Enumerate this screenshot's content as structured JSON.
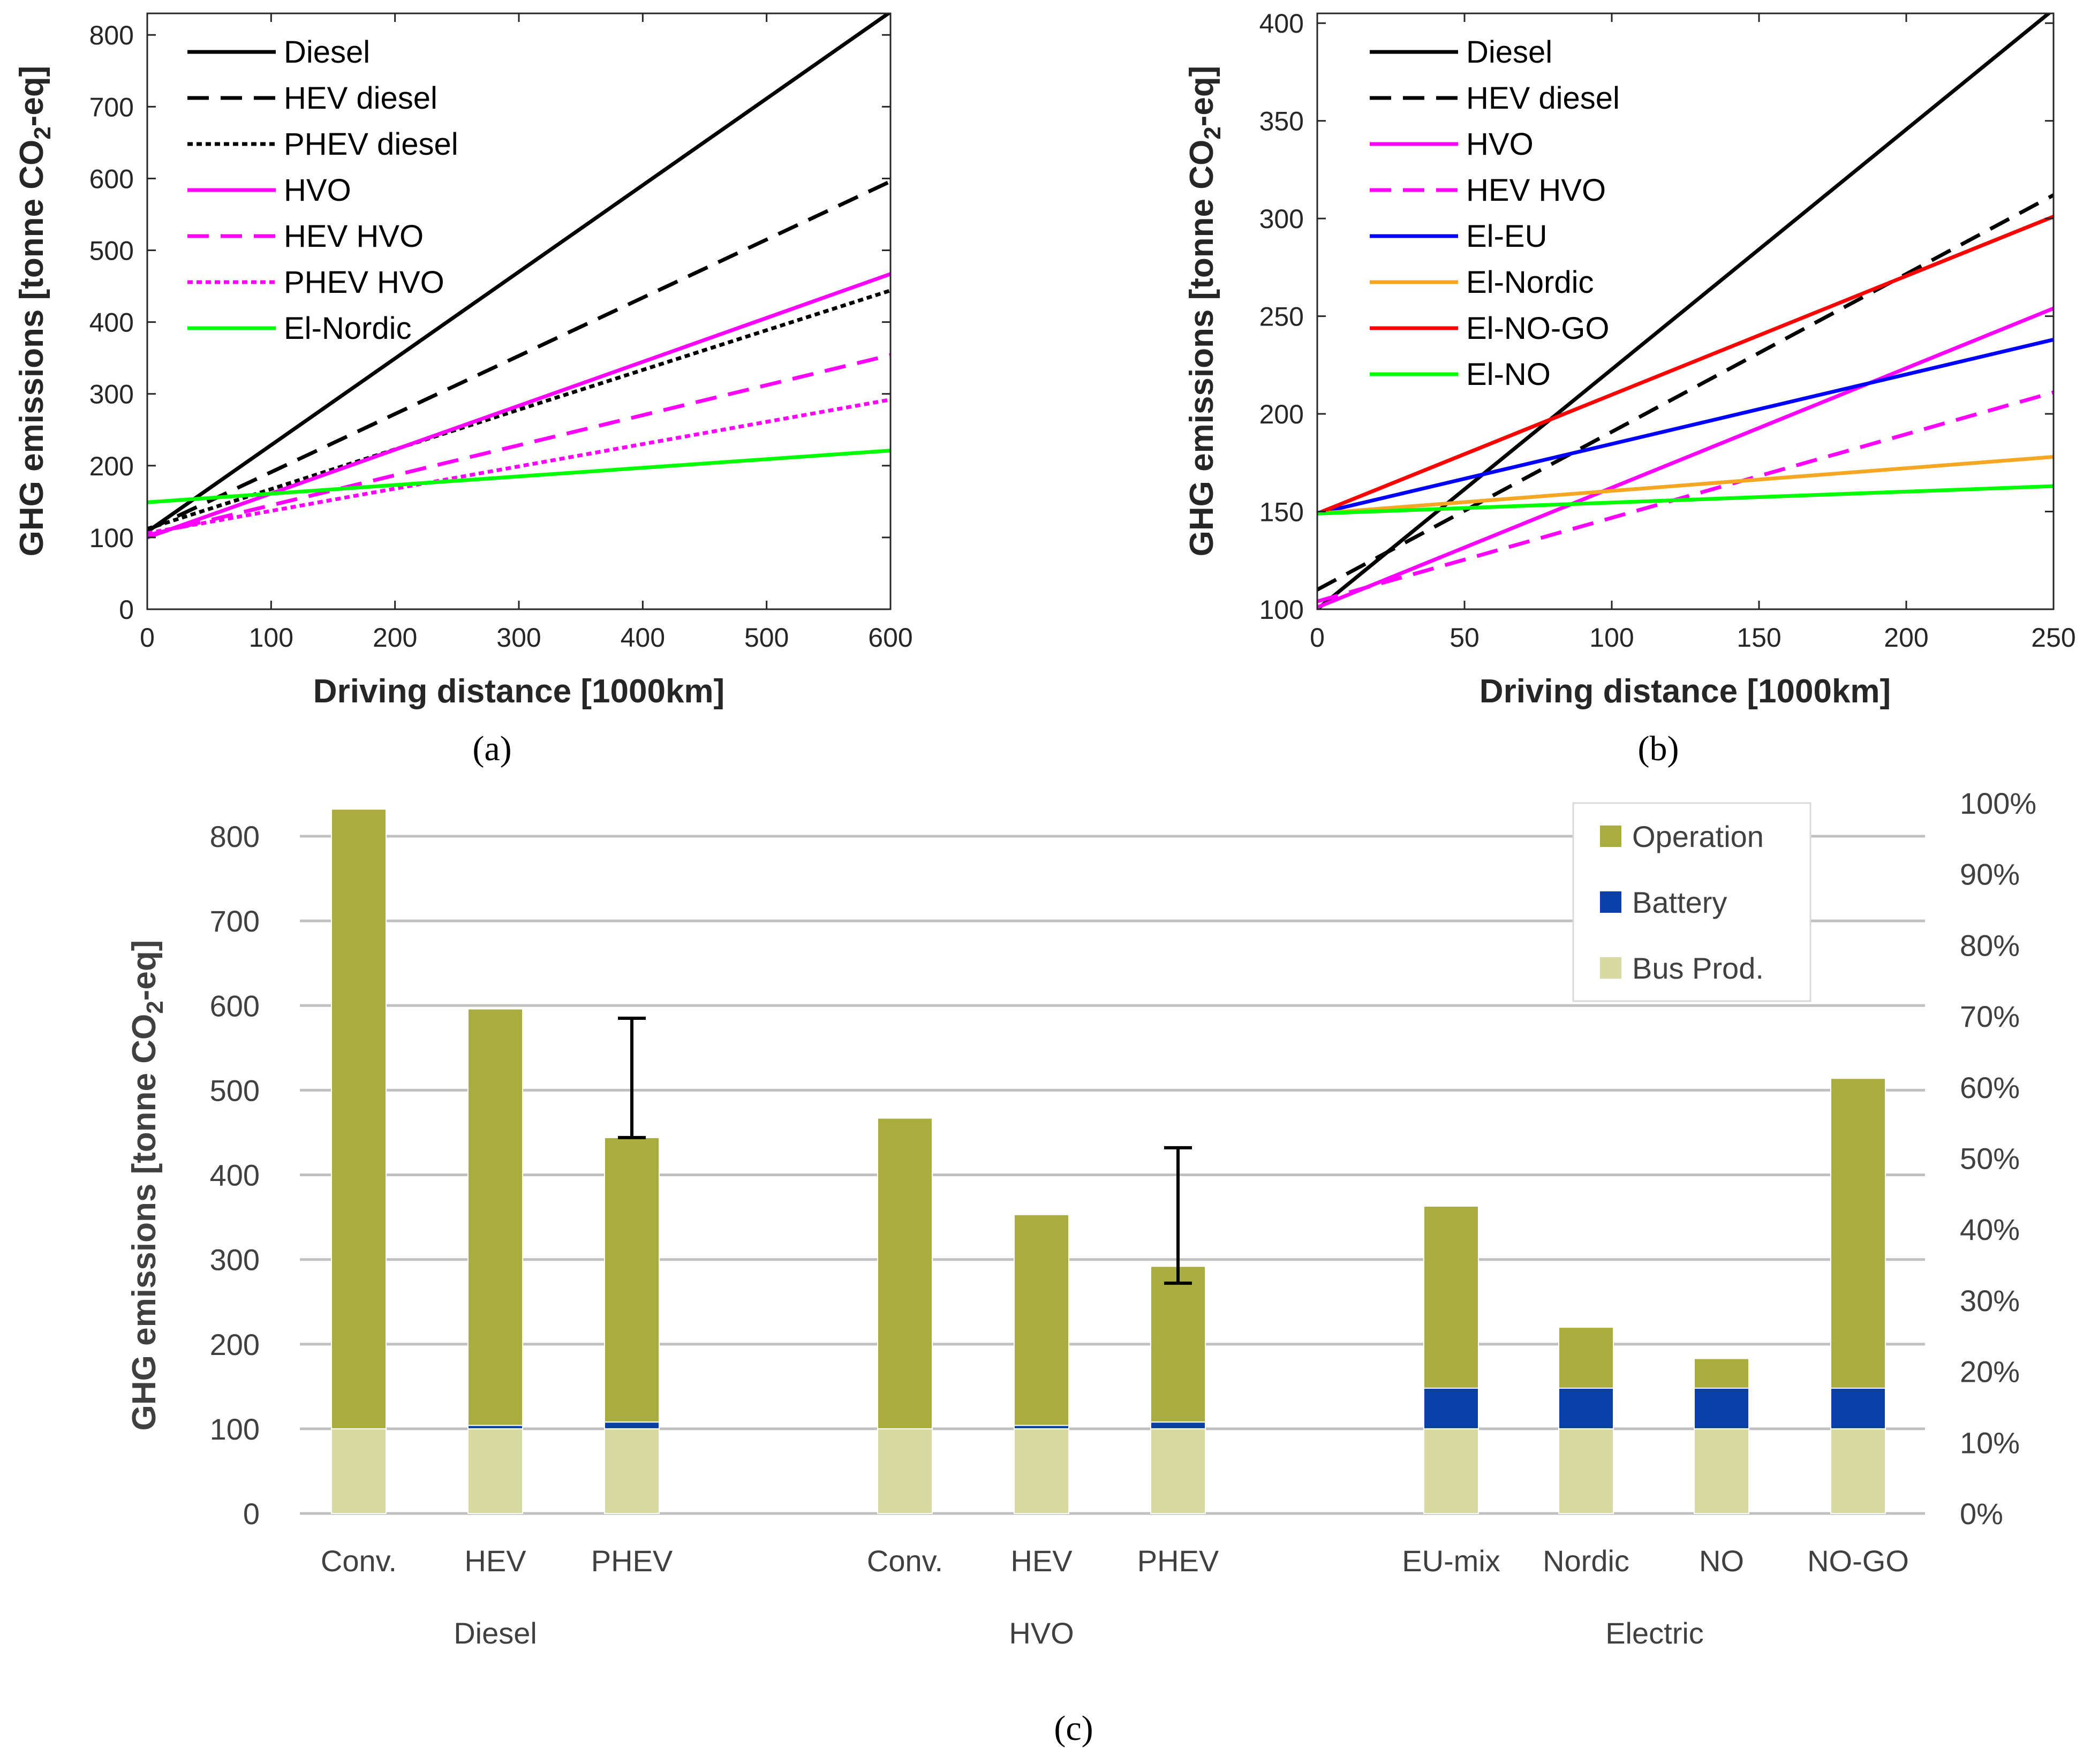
{
  "chart_data": [
    {
      "id": "a",
      "panel_label": "(a)",
      "type": "line",
      "xlabel": "Driving distance [1000km]",
      "ylabel": "GHG emissions [tonne CO2-eq]",
      "xlim": [
        0,
        600
      ],
      "ylim": [
        0,
        830
      ],
      "xticks": [
        0,
        100,
        200,
        300,
        400,
        500,
        600
      ],
      "yticks": [
        0,
        100,
        200,
        300,
        400,
        500,
        600,
        700,
        800
      ],
      "legend_position": "top-left",
      "series": [
        {
          "name": "Diesel",
          "color": "#000000",
          "style": "solid",
          "x": [
            0,
            600
          ],
          "y": [
            108,
            832
          ]
        },
        {
          "name": "HEV diesel",
          "color": "#000000",
          "style": "dashed",
          "x": [
            0,
            600
          ],
          "y": [
            110,
            596
          ]
        },
        {
          "name": "PHEV diesel",
          "color": "#000000",
          "style": "dotted",
          "x": [
            0,
            600
          ],
          "y": [
            112,
            444
          ]
        },
        {
          "name": "HVO",
          "color": "#ff00ff",
          "style": "solid",
          "x": [
            0,
            600
          ],
          "y": [
            100,
            467
          ]
        },
        {
          "name": "HEV HVO",
          "color": "#ff00ff",
          "style": "dashed",
          "x": [
            0,
            600
          ],
          "y": [
            103,
            354
          ]
        },
        {
          "name": "PHEV HVO",
          "color": "#ff00ff",
          "style": "dotted",
          "x": [
            0,
            600
          ],
          "y": [
            106,
            292
          ]
        },
        {
          "name": "El-Nordic",
          "color": "#00ff00",
          "style": "solid",
          "x": [
            0,
            600
          ],
          "y": [
            149,
            221
          ]
        }
      ]
    },
    {
      "id": "b",
      "panel_label": "(b)",
      "type": "line",
      "xlabel": "Driving distance [1000km]",
      "ylabel": "GHG emissions [tonne CO2-eq]",
      "xlim": [
        0,
        250
      ],
      "ylim": [
        100,
        405
      ],
      "xticks": [
        0,
        50,
        100,
        150,
        200,
        250
      ],
      "yticks": [
        100,
        150,
        200,
        250,
        300,
        350,
        400
      ],
      "legend_position": "top-left",
      "series": [
        {
          "name": "Diesel",
          "color": "#000000",
          "style": "solid",
          "x": [
            0,
            250
          ],
          "y": [
            100,
            407
          ]
        },
        {
          "name": "HEV diesel",
          "color": "#000000",
          "style": "dashed",
          "x": [
            0,
            250
          ],
          "y": [
            110,
            312
          ]
        },
        {
          "name": "HVO",
          "color": "#ff00ff",
          "style": "solid",
          "x": [
            0,
            250
          ],
          "y": [
            101,
            254
          ]
        },
        {
          "name": "HEV HVO",
          "color": "#ff00ff",
          "style": "dashed",
          "x": [
            0,
            250
          ],
          "y": [
            104,
            211
          ]
        },
        {
          "name": "El-EU",
          "color": "#0000ff",
          "style": "solid",
          "x": [
            0,
            250
          ],
          "y": [
            149,
            238
          ]
        },
        {
          "name": "El-Nordic",
          "color": "#f5a623",
          "style": "solid",
          "x": [
            0,
            250
          ],
          "y": [
            149,
            178
          ]
        },
        {
          "name": "El-NO-GO",
          "color": "#ff0000",
          "style": "solid",
          "x": [
            0,
            250
          ],
          "y": [
            149,
            301
          ]
        },
        {
          "name": "El-NO",
          "color": "#00ff00",
          "style": "solid",
          "x": [
            0,
            250
          ],
          "y": [
            149,
            163
          ]
        }
      ]
    },
    {
      "id": "c",
      "panel_label": "(c)",
      "type": "bar",
      "stacked": true,
      "ylabel": "GHG emissions [tonne CO2-eq]",
      "ylim": [
        0,
        800
      ],
      "yticks": [
        0,
        100,
        200,
        300,
        400,
        500,
        600,
        700,
        800
      ],
      "y2ticks": [
        "0%",
        "10%",
        "20%",
        "30%",
        "40%",
        "50%",
        "60%",
        "70%",
        "80%",
        "90%",
        "100%"
      ],
      "legend_position": "top-right",
      "categories": [
        "Conv.",
        "HEV",
        "PHEV",
        "Conv.",
        "HEV",
        "PHEV",
        "EU-mix",
        "Nordic",
        "NO",
        "NO-GO"
      ],
      "groups": [
        {
          "name": "Diesel",
          "members": [
            0,
            1,
            2
          ]
        },
        {
          "name": "HVO",
          "members": [
            3,
            4,
            5
          ]
        },
        {
          "name": "Electric",
          "members": [
            6,
            7,
            8,
            9
          ]
        }
      ],
      "series": [
        {
          "name": "Bus Prod.",
          "color": "#d6d9a0",
          "values": [
            100,
            100,
            100,
            100,
            100,
            100,
            100,
            100,
            100,
            100
          ]
        },
        {
          "name": "Battery",
          "color": "#0a3fa8",
          "values": [
            0,
            4,
            8,
            0,
            4,
            8,
            48,
            48,
            48,
            48
          ]
        },
        {
          "name": "Operation",
          "color": "#a9ad3e",
          "values": [
            732,
            492,
            336,
            367,
            249,
            184,
            215,
            72,
            35,
            366
          ]
        }
      ],
      "error_bars": [
        {
          "category_index": 2,
          "low": 444,
          "high": 585
        },
        {
          "category_index": 5,
          "low": 272,
          "high": 432
        }
      ]
    }
  ]
}
